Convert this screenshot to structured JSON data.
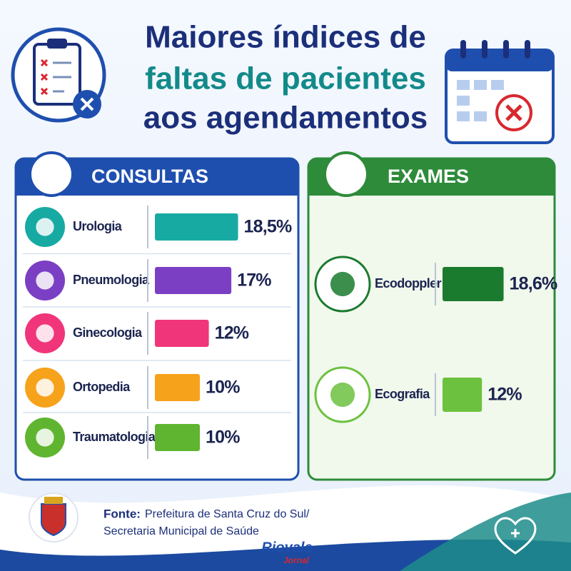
{
  "title_lines": [
    "Maiores índices de",
    "faltas de pacientes",
    "aos agendamentos"
  ],
  "chart_data": [
    {
      "type": "bar",
      "title": "CONSULTAS",
      "categories": [
        "Urologia",
        "Pneumologia",
        "Ginecologia",
        "Ortopedia",
        "Traumatologia"
      ],
      "values": [
        18.5,
        17,
        12,
        10,
        10
      ],
      "value_labels": [
        "18,5%",
        "17%",
        "12%",
        "10%",
        "10%"
      ],
      "colors": [
        "#17aaa3",
        "#7b3fc4",
        "#f0357a",
        "#f7a21b",
        "#5fb52f"
      ]
    },
    {
      "type": "bar",
      "title": "EXAMES",
      "categories": [
        "Ecodoppler",
        "Ecografia"
      ],
      "values": [
        18.6,
        12
      ],
      "value_labels": [
        "18,6%",
        "12%"
      ],
      "colors": [
        "#1a7a2e",
        "#6cc13f"
      ]
    }
  ],
  "footer": {
    "label": "Fonte:",
    "lines": [
      "Prefeitura de Santa Cruz do Sul/",
      "Secretaria Municipal de Saúde"
    ]
  },
  "logo": [
    "Riovale",
    "Jornal"
  ]
}
